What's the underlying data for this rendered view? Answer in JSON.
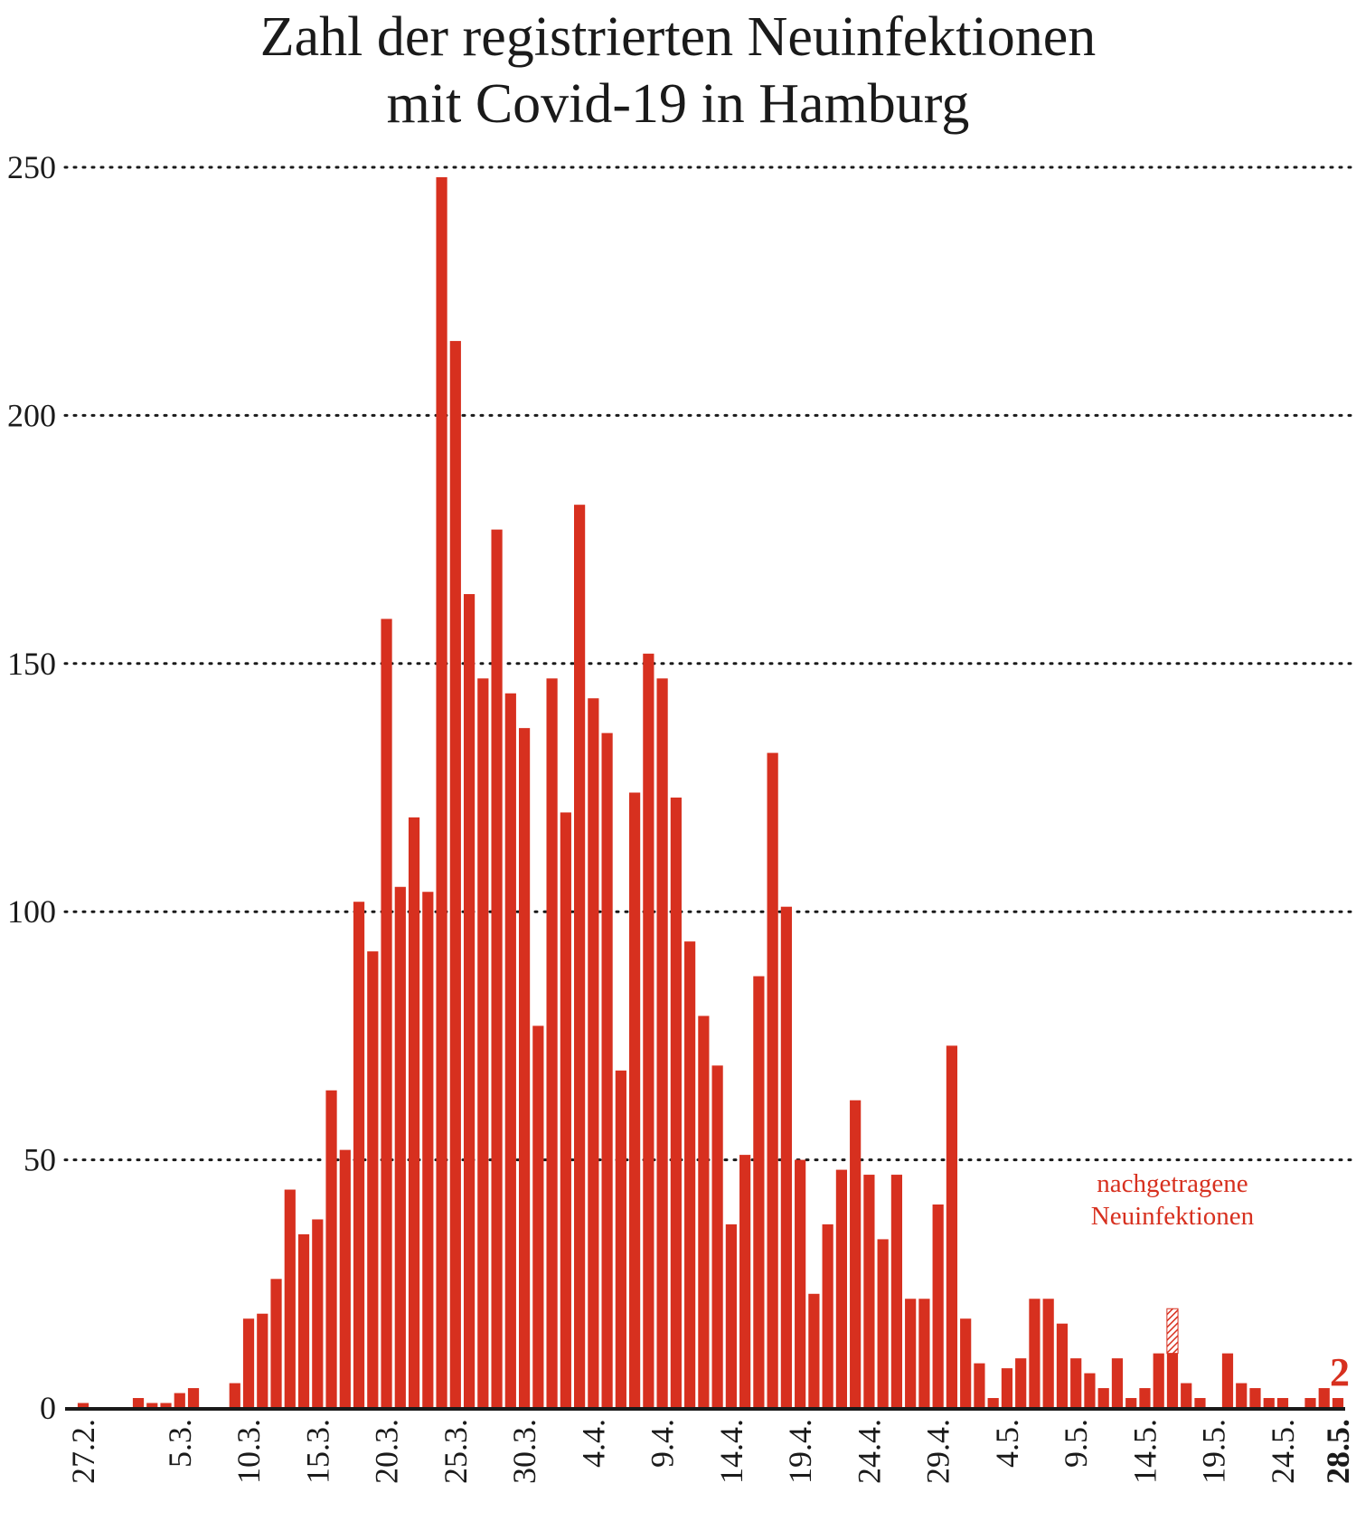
{
  "chart_data": {
    "type": "bar",
    "title": "Zahl der registrierten Neuinfektionen mit Covid-19 in Hamburg",
    "title_lines": [
      "Zahl der registrierten Neuinfektionen",
      "mit Covid-19 in Hamburg"
    ],
    "xlabel": "",
    "ylabel": "",
    "ylim": [
      0,
      250
    ],
    "yticks": [
      0,
      50,
      100,
      150,
      200,
      250
    ],
    "grid": "dotted horizontal",
    "bar_color": "#d7301f",
    "start_date": "27.2.",
    "xtick_labels": [
      {
        "index": 0,
        "label": "27.2."
      },
      {
        "index": 7,
        "label": "5.3."
      },
      {
        "index": 12,
        "label": "10.3."
      },
      {
        "index": 17,
        "label": "15.3."
      },
      {
        "index": 22,
        "label": "20.3."
      },
      {
        "index": 27,
        "label": "25.3."
      },
      {
        "index": 32,
        "label": "30.3."
      },
      {
        "index": 37,
        "label": "4.4."
      },
      {
        "index": 42,
        "label": "9.4."
      },
      {
        "index": 47,
        "label": "14.4."
      },
      {
        "index": 52,
        "label": "19.4."
      },
      {
        "index": 57,
        "label": "24.4."
      },
      {
        "index": 62,
        "label": "29.4."
      },
      {
        "index": 67,
        "label": "4.5."
      },
      {
        "index": 72,
        "label": "9.5."
      },
      {
        "index": 77,
        "label": "14.5."
      },
      {
        "index": 82,
        "label": "19.5."
      },
      {
        "index": 87,
        "label": "24.5."
      },
      {
        "index": 91,
        "label": "28.5."
      }
    ],
    "values": [
      1,
      0,
      0,
      0,
      2,
      1,
      1,
      3,
      4,
      0,
      0,
      5,
      18,
      19,
      26,
      44,
      35,
      38,
      64,
      52,
      102,
      92,
      159,
      105,
      119,
      104,
      248,
      215,
      164,
      147,
      177,
      144,
      137,
      77,
      147,
      120,
      182,
      143,
      136,
      68,
      124,
      152,
      147,
      123,
      94,
      79,
      69,
      37,
      51,
      87,
      132,
      101,
      50,
      23,
      37,
      48,
      62,
      47,
      34,
      47,
      22,
      22,
      41,
      73,
      18,
      9,
      2,
      8,
      10,
      22,
      22,
      17,
      10,
      7,
      4,
      10,
      2,
      4,
      11,
      11,
      5,
      2,
      0,
      11,
      5,
      4,
      2,
      2,
      0,
      2,
      4,
      2
    ],
    "annotations": [
      {
        "text_lines": [
          "nachgetragene",
          "Neuinfektionen"
        ],
        "index": 79,
        "hatched_value": 9
      },
      {
        "text": "2",
        "index": 91,
        "note": "final value highlight"
      }
    ]
  }
}
